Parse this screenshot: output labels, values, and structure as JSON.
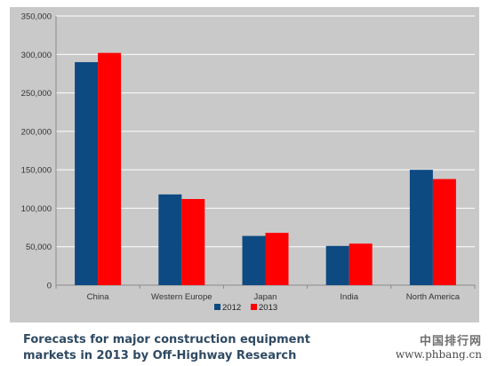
{
  "chart_data": {
    "type": "bar",
    "categories": [
      "China",
      "Western Europe",
      "Japan",
      "India",
      "North America"
    ],
    "series": [
      {
        "name": "2012",
        "color": "#0d4a82",
        "values": [
          290000,
          118000,
          64000,
          51000,
          150000
        ]
      },
      {
        "name": "2013",
        "color": "#ff0000",
        "values": [
          302000,
          112000,
          68000,
          54000,
          138000
        ]
      }
    ],
    "ylim": [
      0,
      350000
    ],
    "yticks": [
      0,
      50000,
      100000,
      150000,
      200000,
      250000,
      300000,
      350000
    ],
    "ytick_labels": [
      "0",
      "50,000",
      "100,000",
      "150,000",
      "200,000",
      "250,000",
      "300,000",
      "350,000"
    ],
    "grid": true,
    "legend_position": "bottom-center"
  },
  "caption": "Forecasts for major construction equipment markets in 2013 by Off-Highway Research",
  "watermark": {
    "chinese": "中国排行网",
    "url": "www.phbang.cn"
  },
  "colors": {
    "panel_background": "#c9c9c9",
    "plot_background": "#c9c9c9",
    "gridline": "#ffffff",
    "caption": "#2f4a63"
  }
}
